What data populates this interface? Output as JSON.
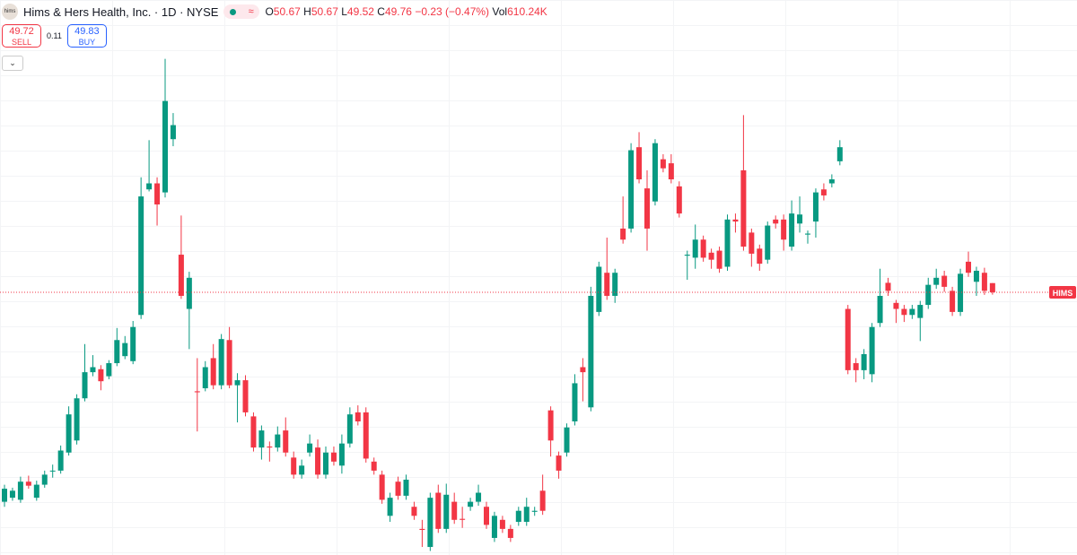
{
  "header": {
    "logo": "hims",
    "symbol": "Hims & Hers Health, Inc. · 1D · NYSE",
    "status": "≈",
    "open_label": "O",
    "open": "50.67",
    "high_label": "H",
    "high": "50.67",
    "low_label": "L",
    "low": "49.52",
    "close_label": "C",
    "close": "49.76",
    "change": "−0.23 (−0.47%)",
    "volume_label": "Vol",
    "volume": "610.24K",
    "sell_price": "49.72",
    "sell_label": "SELL",
    "spread": "0.11",
    "buy_price": "49.83",
    "buy_label": "BUY"
  },
  "chart_data": {
    "type": "candlestick",
    "ylim": [
      23.6,
      73.5
    ],
    "up_color": "#089981",
    "down_color": "#f23645",
    "price_label": "HIMS",
    "open": [
      28.9,
      29.3,
      29.1,
      30.9,
      29.3,
      30.6,
      32.0,
      32.0,
      33.8,
      35.0,
      39.2,
      41.8,
      42.1,
      41.4,
      42.7,
      43.4,
      42.9,
      47.5,
      60.0,
      60.6,
      59.7,
      65.0,
      53.5,
      48.1,
      39.9,
      40.2,
      43.2,
      40.5,
      45.0,
      40.5,
      41.0,
      37.4,
      34.3,
      34.4,
      34.3,
      36.0,
      33.3,
      31.6,
      33.8,
      34.3,
      31.6,
      33.8,
      32.5,
      34.7,
      37.8,
      37.8,
      32.9,
      31.6,
      27.5,
      30.9,
      29.5,
      28.4,
      26.2,
      24.4,
      29.8,
      26.2,
      28.9,
      27.2,
      28.4,
      28.9,
      28.4,
      25.3,
      27.1,
      26.2,
      26.9,
      26.9,
      27.9,
      30.0,
      38.0,
      33.5,
      33.8,
      36.9,
      42.3,
      38.3,
      47.8,
      51.7,
      49.4,
      56.1,
      56.1,
      64.2,
      60.1,
      58.8,
      63.0,
      62.6,
      60.3,
      53.4,
      53.2,
      55.0,
      53.7,
      53.9,
      52.3,
      57.0,
      61.9,
      55.7,
      54.1,
      53.0,
      57.0,
      57.0,
      54.3,
      56.6,
      55.5,
      56.8,
      60.0,
      60.6,
      62.8,
      48.1,
      42.7,
      42.0,
      41.6,
      46.7,
      50.7,
      48.7,
      48.1,
      47.5,
      47.2,
      48.5,
      50.5,
      51.4,
      49.9,
      47.8,
      52.8,
      50.8,
      51.7,
      50.67
    ],
    "high": [
      30.6,
      30.3,
      31.4,
      31.5,
      31.0,
      32.0,
      32.6,
      34.5,
      38.4,
      39.6,
      44.6,
      43.5,
      42.5,
      43.0,
      46.2,
      45.4,
      46.9,
      61.2,
      64.9,
      61.2,
      73.0,
      67.6,
      57.4,
      51.8,
      43.2,
      42.9,
      44.6,
      45.6,
      46.3,
      41.7,
      41.5,
      37.8,
      36.5,
      34.9,
      36.4,
      37.3,
      33.9,
      33.1,
      35.6,
      35.1,
      34.4,
      34.4,
      35.6,
      38.3,
      38.5,
      38.3,
      33.3,
      32.0,
      29.8,
      31.4,
      31.6,
      28.9,
      27.1,
      29.8,
      30.6,
      30.7,
      29.8,
      28.4,
      29.3,
      30.6,
      28.9,
      27.9,
      27.5,
      26.6,
      28.4,
      29.3,
      28.4,
      31.6,
      38.4,
      33.9,
      36.7,
      41.6,
      43.2,
      50.3,
      52.8,
      55.2,
      52.1,
      59.3,
      64.6,
      65.7,
      61.9,
      65.0,
      63.5,
      63.5,
      60.8,
      53.9,
      56.5,
      55.4,
      54.1,
      54.3,
      57.5,
      57.6,
      67.4,
      56.1,
      54.5,
      56.8,
      57.4,
      57.5,
      58.9,
      59.3,
      55.9,
      60.1,
      60.6,
      61.5,
      64.9,
      48.5,
      43.2,
      44.1,
      46.7,
      52.1,
      51.2,
      49.0,
      48.5,
      48.5,
      48.9,
      51.2,
      52.1,
      51.9,
      50.3,
      52.1,
      53.8,
      52.3,
      52.2,
      50.67
    ],
    "low": [
      28.4,
      29.0,
      28.8,
      30.2,
      29.0,
      30.3,
      31.3,
      31.7,
      33.5,
      34.6,
      38.9,
      41.4,
      40.0,
      41.1,
      42.4,
      43.1,
      42.6,
      47.1,
      59.8,
      56.4,
      59.2,
      64.3,
      49.1,
      44.1,
      35.9,
      39.9,
      40.1,
      40.1,
      40.2,
      36.8,
      37.4,
      33.9,
      33.1,
      32.9,
      33.9,
      33.4,
      31.2,
      31.2,
      33.4,
      31.2,
      31.2,
      32.5,
      31.7,
      34.3,
      36.5,
      32.8,
      31.6,
      28.7,
      26.9,
      29.1,
      29.1,
      27.1,
      24.4,
      24.0,
      25.8,
      25.8,
      26.7,
      26.3,
      28.0,
      28.5,
      26.2,
      24.9,
      25.8,
      24.9,
      26.5,
      26.5,
      27.5,
      27.6,
      33.4,
      31.2,
      33.4,
      36.5,
      38.9,
      37.9,
      47.4,
      49.0,
      48.7,
      54.6,
      55.7,
      60.6,
      53.9,
      58.4,
      61.7,
      60.6,
      57.2,
      51.0,
      52.1,
      52.8,
      52.1,
      51.7,
      51.9,
      55.7,
      53.9,
      52.3,
      51.9,
      52.6,
      56.1,
      53.9,
      53.9,
      55.7,
      54.6,
      55.2,
      58.9,
      60.2,
      62.4,
      41.6,
      40.8,
      41.1,
      40.8,
      46.3,
      49.4,
      46.7,
      46.8,
      47.1,
      44.9,
      48.1,
      50.1,
      49.8,
      47.4,
      47.4,
      51.3,
      49.4,
      49.5,
      49.52
    ],
    "close": [
      30.2,
      30.0,
      30.9,
      30.5,
      30.6,
      31.6,
      32.0,
      34.0,
      37.6,
      39.2,
      41.8,
      42.3,
      40.9,
      42.7,
      45.0,
      44.7,
      46.3,
      59.3,
      60.6,
      58.5,
      68.8,
      66.4,
      49.4,
      51.2,
      39.8,
      42.3,
      40.5,
      45.1,
      40.5,
      41.0,
      37.8,
      34.3,
      36.0,
      34.3,
      35.6,
      33.8,
      31.6,
      32.5,
      34.7,
      31.6,
      33.8,
      32.9,
      34.7,
      37.6,
      36.9,
      33.2,
      32.0,
      29.1,
      29.3,
      29.5,
      31.1,
      27.5,
      26.1,
      29.3,
      26.2,
      29.6,
      27.1,
      27.1,
      28.9,
      29.8,
      26.6,
      27.5,
      26.2,
      25.3,
      28.0,
      28.4,
      28.0,
      28.0,
      35.0,
      32.0,
      36.3,
      40.7,
      41.8,
      49.4,
      52.3,
      49.4,
      51.7,
      55.0,
      63.9,
      61.0,
      56.1,
      64.6,
      62.1,
      61.0,
      57.6,
      53.5,
      55.0,
      53.2,
      53.0,
      52.1,
      57.0,
      56.8,
      54.3,
      53.6,
      52.6,
      56.4,
      56.6,
      55.0,
      57.6,
      57.5,
      55.6,
      59.7,
      59.4,
      61.0,
      64.2,
      42.0,
      42.0,
      43.6,
      46.3,
      49.4,
      49.9,
      48.1,
      47.5,
      48.1,
      48.5,
      50.5,
      51.2,
      50.3,
      47.8,
      51.6,
      51.7,
      51.9,
      49.9,
      49.76
    ]
  }
}
